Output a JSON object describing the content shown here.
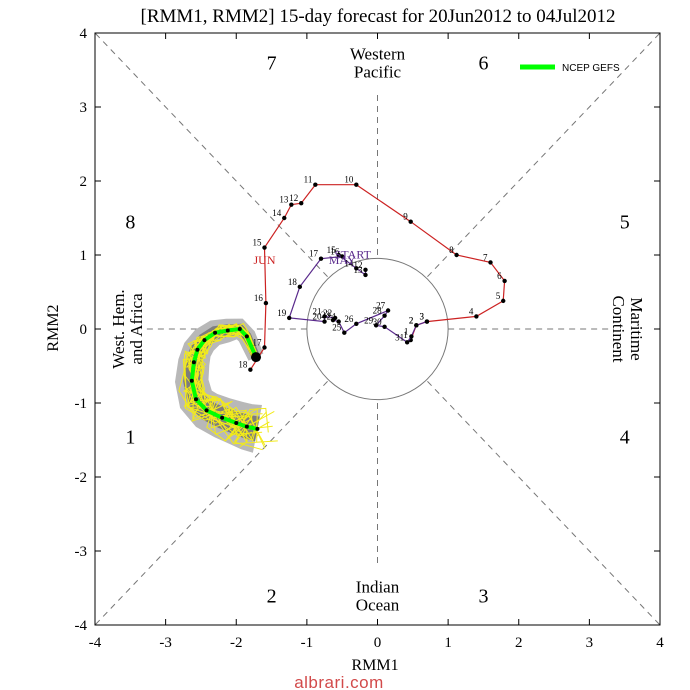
{
  "page": {
    "title": "[RMM1, RMM2] 15-day forecast for 20Jun2012 to 04Jul2012",
    "watermark": "albrari.com"
  },
  "chart_data": {
    "type": "scatter",
    "title": "[RMM1, RMM2] 15-day forecast for 20Jun2012 to 04Jul2012",
    "xlabel": "RMM1",
    "ylabel": "RMM2",
    "xlim": [
      -4,
      4
    ],
    "ylim": [
      -4,
      4
    ],
    "x_ticks": [
      -4,
      -3,
      -2,
      -1,
      0,
      1,
      2,
      3,
      4
    ],
    "y_ticks": [
      -4,
      -3,
      -2,
      -1,
      0,
      1,
      2,
      3,
      4
    ],
    "unit_circle_radius": 1,
    "dashed_diagonals": true,
    "dashed_axes": true,
    "phase_numbers": [
      {
        "label": "7",
        "x": -1.5,
        "y": 3.6
      },
      {
        "label": "6",
        "x": 1.5,
        "y": 3.6
      },
      {
        "label": "8",
        "x": -3.5,
        "y": 1.45
      },
      {
        "label": "5",
        "x": 3.5,
        "y": 1.45
      },
      {
        "label": "1",
        "x": -3.5,
        "y": -1.45
      },
      {
        "label": "4",
        "x": 3.5,
        "y": -1.45
      },
      {
        "label": "2",
        "x": -1.5,
        "y": -3.6
      },
      {
        "label": "3",
        "x": 1.5,
        "y": -3.6
      }
    ],
    "regions": [
      {
        "lines": [
          "Western",
          "Pacific"
        ],
        "x": 0,
        "y": 3.6,
        "rotate": 0
      },
      {
        "lines": [
          "Indian",
          "Ocean"
        ],
        "x": 0,
        "y": -3.6,
        "rotate": 0
      },
      {
        "lines": [
          "West. Hem.",
          "and Africa"
        ],
        "x": -3.55,
        "y": 0,
        "rotate": -90
      },
      {
        "lines": [
          "Maritime",
          "Continent"
        ],
        "x": 3.55,
        "y": 0,
        "rotate": 90
      }
    ],
    "legend": {
      "label": "NCEP GEFS",
      "color": "#00ff00",
      "position": "top-right"
    },
    "series": [
      {
        "month": "JUN",
        "color": "#cc2222",
        "month_label_pos": {
          "x": -1.6,
          "y": 0.88
        },
        "points": [
          {
            "d": "1",
            "x": 0.47,
            "y": -0.15
          },
          {
            "d": "2",
            "x": 0.55,
            "y": 0.05
          },
          {
            "d": "3",
            "x": 0.7,
            "y": 0.1
          },
          {
            "d": "4",
            "x": 1.4,
            "y": 0.17
          },
          {
            "d": "5",
            "x": 1.78,
            "y": 0.38
          },
          {
            "d": "6",
            "x": 1.8,
            "y": 0.65
          },
          {
            "d": "7",
            "x": 1.6,
            "y": 0.9
          },
          {
            "d": "8",
            "x": 1.12,
            "y": 1.0
          },
          {
            "d": "9",
            "x": 0.47,
            "y": 1.45
          },
          {
            "d": "10",
            "x": -0.3,
            "y": 1.95
          },
          {
            "d": "11",
            "x": -0.88,
            "y": 1.95
          },
          {
            "d": "12",
            "x": -1.08,
            "y": 1.7
          },
          {
            "d": "13",
            "x": -1.22,
            "y": 1.68
          },
          {
            "d": "14",
            "x": -1.32,
            "y": 1.5
          },
          {
            "d": "15",
            "x": -1.6,
            "y": 1.1
          },
          {
            "d": "16",
            "x": -1.58,
            "y": 0.35
          },
          {
            "d": "17",
            "x": -1.6,
            "y": -0.25
          },
          {
            "d": "18",
            "x": -1.8,
            "y": -0.55
          }
        ]
      },
      {
        "month": "MAY",
        "color": "#5a2a8c",
        "month_label_pos": {
          "x": -0.5,
          "y": 0.88
        },
        "start_label": "START",
        "start_label_pos": {
          "x": -0.35,
          "y": 0.95
        },
        "points": [
          {
            "d": "12",
            "x": -0.17,
            "y": 0.8
          },
          {
            "d": "13",
            "x": -0.17,
            "y": 0.73
          },
          {
            "d": "14",
            "x": -0.3,
            "y": 0.82
          },
          {
            "d": "15",
            "x": -0.55,
            "y": 1.0
          },
          {
            "d": "16",
            "x": -0.5,
            "y": 0.98
          },
          {
            "d": "17",
            "x": -0.8,
            "y": 0.95
          },
          {
            "d": "18",
            "x": -1.1,
            "y": 0.57
          },
          {
            "d": "19",
            "x": -1.25,
            "y": 0.15
          },
          {
            "d": "20",
            "x": -0.75,
            "y": 0.1
          },
          {
            "d": "21",
            "x": -0.75,
            "y": 0.17
          },
          {
            "d": "22",
            "x": -0.6,
            "y": 0.15
          },
          {
            "d": "23",
            "x": -0.63,
            "y": 0.12
          },
          {
            "d": "24",
            "x": -0.55,
            "y": 0.1
          },
          {
            "d": "25",
            "x": -0.47,
            "y": -0.05
          },
          {
            "d": "26",
            "x": -0.3,
            "y": 0.07
          },
          {
            "d": "27",
            "x": 0.15,
            "y": 0.25
          },
          {
            "d": "28",
            "x": 0.1,
            "y": 0.18
          },
          {
            "d": "29",
            "x": -0.02,
            "y": 0.05
          },
          {
            "d": "30",
            "x": 0.1,
            "y": 0.03
          },
          {
            "d": "31",
            "x": 0.42,
            "y": -0.18
          },
          {
            "d": "1",
            "x": 0.48,
            "y": -0.1
          },
          {
            "d": "2",
            "x": 0.55,
            "y": 0.05
          },
          {
            "d": "3",
            "x": 0.7,
            "y": 0.1
          }
        ]
      }
    ],
    "forecast": {
      "start": {
        "x": -1.72,
        "y": -0.38
      },
      "ensemble_mean": [
        {
          "x": -1.72,
          "y": -0.38
        },
        {
          "x": -1.85,
          "y": -0.1
        },
        {
          "x": -1.95,
          "y": 0.0
        },
        {
          "x": -2.12,
          "y": -0.02
        },
        {
          "x": -2.3,
          "y": -0.05
        },
        {
          "x": -2.45,
          "y": -0.15
        },
        {
          "x": -2.55,
          "y": -0.28
        },
        {
          "x": -2.6,
          "y": -0.45
        },
        {
          "x": -2.63,
          "y": -0.7
        },
        {
          "x": -2.57,
          "y": -0.95
        },
        {
          "x": -2.42,
          "y": -1.1
        },
        {
          "x": -2.2,
          "y": -1.2
        },
        {
          "x": -2.0,
          "y": -1.27
        },
        {
          "x": -1.85,
          "y": -1.32
        },
        {
          "x": -1.7,
          "y": -1.35
        }
      ]
    }
  }
}
